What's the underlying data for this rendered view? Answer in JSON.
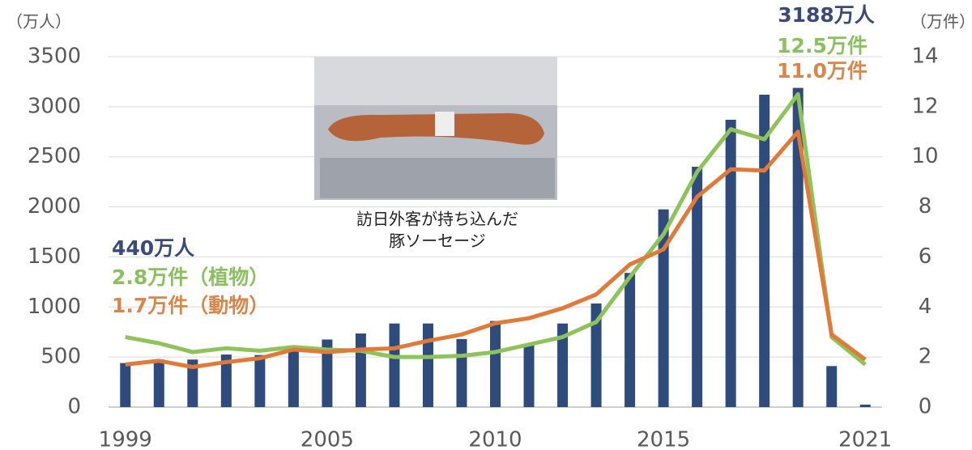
{
  "chart_data": {
    "type": "combo",
    "y_unit_label": "（万人）",
    "y2_unit_label": "（万件）",
    "x": [
      1999,
      2000,
      2001,
      2002,
      2003,
      2004,
      2005,
      2006,
      2007,
      2008,
      2009,
      2010,
      2011,
      2012,
      2013,
      2014,
      2015,
      2016,
      2017,
      2018,
      2019,
      2020,
      2021
    ],
    "series": [
      {
        "type": "bar",
        "color": "#2f4b7c",
        "values": [
          440,
          475,
          475,
          525,
          520,
          615,
          675,
          735,
          835,
          835,
          680,
          860,
          620,
          835,
          1035,
          1340,
          1975,
          2400,
          2870,
          3120,
          3188,
          410,
          25
        ]
      },
      {
        "type": "line",
        "axis": "y2",
        "color": "#8dc35a",
        "values": [
          2.8,
          2.55,
          2.2,
          2.35,
          2.25,
          2.4,
          2.3,
          2.25,
          2.0,
          2.0,
          2.05,
          2.2,
          2.5,
          2.8,
          3.4,
          5.2,
          6.9,
          9.4,
          11.1,
          10.7,
          12.5,
          2.8,
          1.7
        ]
      },
      {
        "type": "line",
        "axis": "y2",
        "color": "#e07a3a",
        "values": [
          1.7,
          1.85,
          1.6,
          1.8,
          1.95,
          2.3,
          2.2,
          2.3,
          2.35,
          2.65,
          2.9,
          3.35,
          3.55,
          3.95,
          4.5,
          5.7,
          6.3,
          8.4,
          9.5,
          9.45,
          11.0,
          2.9,
          1.9
        ]
      }
    ],
    "xlim": [
      1998.5,
      2021.5
    ],
    "xticks": [
      1999,
      2005,
      2010,
      2015,
      2021
    ],
    "ylim": [
      0,
      3500
    ],
    "yticks": [
      0,
      500,
      1000,
      1500,
      2000,
      2500,
      3000,
      3500
    ],
    "y2lim": [
      0,
      14
    ],
    "y2ticks": [
      0,
      2,
      4,
      6,
      8,
      10,
      12,
      14
    ],
    "grid": true,
    "annotations": [
      {
        "text": "3188万人",
        "color": "#3a4a7a"
      },
      {
        "text": "12.5万件",
        "color": "#8bc060"
      },
      {
        "text": "11.0万件",
        "color": "#d9864a"
      },
      {
        "text": "440万人",
        "color": "#3a4a7a"
      },
      {
        "text": "2.8万件（植物）",
        "color": "#8bc060"
      },
      {
        "text": "1.7万件（動物）",
        "color": "#d9864a"
      }
    ],
    "photo_caption": [
      "訪日外客が持ち込んだ",
      "豚ソーセージ"
    ]
  }
}
